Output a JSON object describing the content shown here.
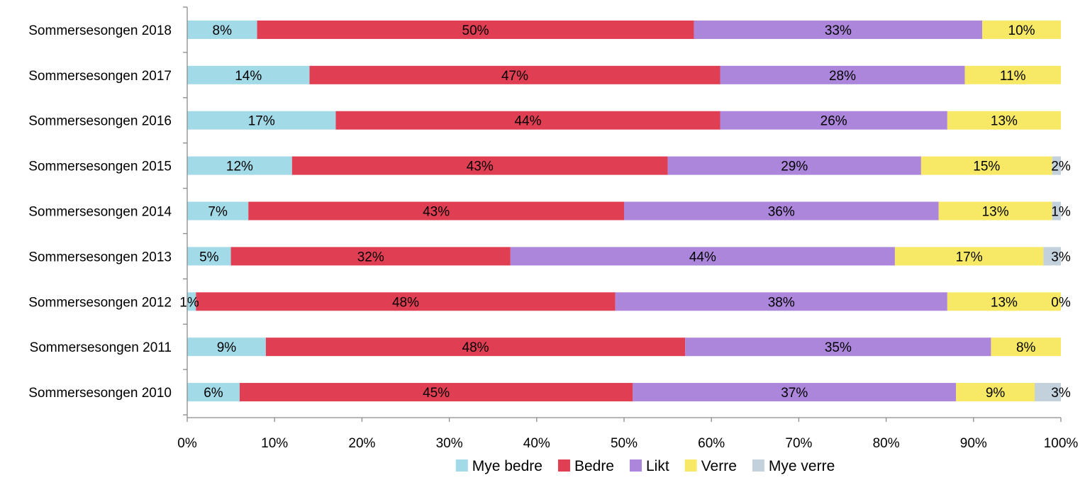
{
  "chart_data": {
    "type": "bar",
    "orientation": "horizontal",
    "stacked": true,
    "percent_stacked": true,
    "categories": [
      "Sommersesongen 2018",
      "Sommersesongen 2017",
      "Sommersesongen 2016",
      "Sommersesongen 2015",
      "Sommersesongen 2014",
      "Sommersesongen 2013",
      "Sommersesongen 2012",
      "Sommersesongen 2011",
      "Sommersesongen 2010"
    ],
    "series": [
      {
        "name": "Mye bedre",
        "color": "#a2dbe7",
        "values": [
          8,
          14,
          17,
          12,
          7,
          5,
          1,
          9,
          6
        ]
      },
      {
        "name": "Bedre",
        "color": "#e03e52",
        "values": [
          50,
          47,
          44,
          43,
          43,
          32,
          48,
          48,
          45
        ]
      },
      {
        "name": "Likt",
        "color": "#ab86da",
        "values": [
          33,
          28,
          26,
          29,
          36,
          44,
          38,
          35,
          37
        ]
      },
      {
        "name": "Verre",
        "color": "#f7e965",
        "values": [
          10,
          11,
          13,
          15,
          13,
          17,
          13,
          8,
          9
        ]
      },
      {
        "name": "Mye verre",
        "color": "#c3d1dd",
        "values": [
          null,
          null,
          null,
          2,
          1,
          3,
          0,
          null,
          3
        ]
      }
    ],
    "data_labels": [
      [
        "8%",
        "50%",
        "33%",
        "10%",
        ""
      ],
      [
        "14%",
        "47%",
        "28%",
        "11%",
        ""
      ],
      [
        "17%",
        "44%",
        "26%",
        "13%",
        ""
      ],
      [
        "12%",
        "43%",
        "29%",
        "15%",
        "2%"
      ],
      [
        "7%",
        "43%",
        "36%",
        "13%",
        "1%"
      ],
      [
        "5%",
        "32%",
        "44%",
        "17%",
        "3%"
      ],
      [
        "1%",
        "48%",
        "38%",
        "13%",
        "0%"
      ],
      [
        "9%",
        "48%",
        "35%",
        "8%",
        ""
      ],
      [
        "6%",
        "45%",
        "37%",
        "9%",
        "3%"
      ]
    ],
    "x_ticks": [
      "0%",
      "10%",
      "20%",
      "30%",
      "40%",
      "50%",
      "60%",
      "70%",
      "80%",
      "90%",
      "100%"
    ],
    "xlim": [
      0,
      100
    ],
    "title": "",
    "xlabel": "",
    "ylabel": "",
    "grid": false,
    "legend_position": "bottom"
  }
}
